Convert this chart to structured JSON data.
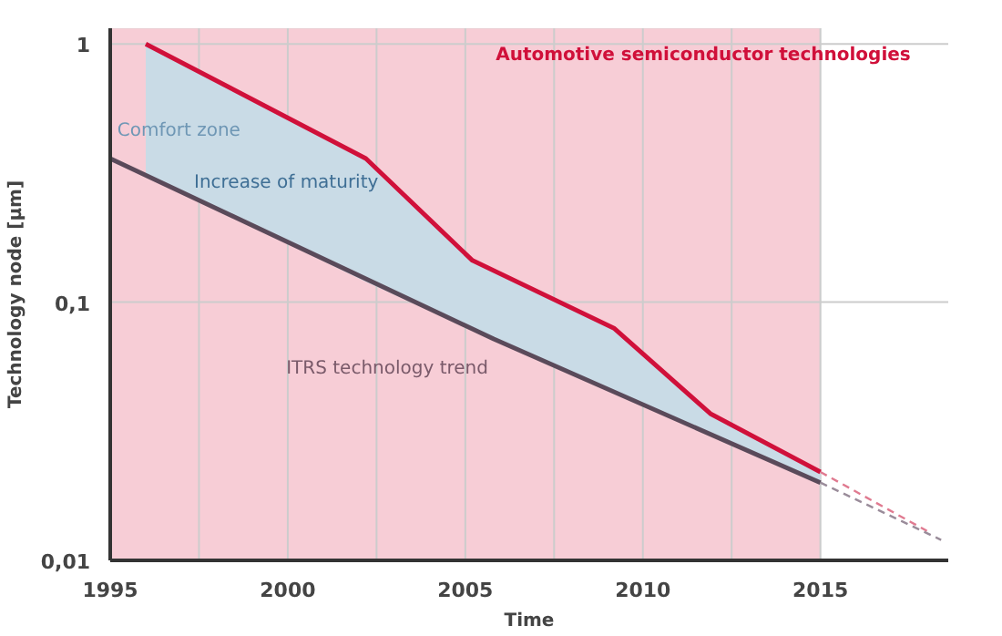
{
  "chart_data": {
    "type": "line",
    "xlabel": "Time",
    "ylabel": "Technology node [µm]",
    "log": "y",
    "xlim": [
      1995,
      2018.6
    ],
    "ylim": [
      0.01,
      1.15
    ],
    "xticks": [
      1995,
      {
        "value": 1997.5,
        "label": null
      },
      2000,
      {
        "value": 2002.5,
        "label": null
      },
      2005,
      {
        "value": 2007.5,
        "label": null
      },
      2010,
      {
        "value": 2012.5,
        "label": null
      },
      2015
    ],
    "yticks": [
      {
        "value": 0.01,
        "label": "0,01"
      },
      {
        "value": 0.1,
        "label": "0,1"
      },
      1
    ],
    "grid": true,
    "line_style": "solid",
    "bands": [
      {
        "axis": "x",
        "from": 1995,
        "to": 2015,
        "color": "#f7cdd6"
      }
    ],
    "series": [
      {
        "color": "#d0103a",
        "x": [
          1996,
          2002.2,
          2005.2,
          2009.2,
          2011.9,
          2015
        ],
        "values": [
          1.0,
          0.36,
          0.145,
          0.079,
          0.037,
          0.022
        ],
        "lower": [
          0.31,
          0.12,
          0.078,
          0.045,
          0.031,
          0.02
        ],
        "upper": [
          1.0,
          0.36,
          0.145,
          0.079,
          0.037,
          0.022
        ]
      },
      {
        "color": "#5a4a5a",
        "x": [
          1995,
          2005.8,
          2015
        ],
        "values": [
          0.36,
          0.072,
          0.02
        ]
      },
      {
        "color": "#e07a90",
        "x": [
          2015,
          2018
        ],
        "values": [
          0.022,
          0.013
        ],
        "line_style": "dashed"
      },
      {
        "color": "#9a8c9a",
        "x": [
          2015,
          2018.4
        ],
        "values": [
          0.02,
          0.012
        ],
        "line_style": "dashed"
      }
    ],
    "annotations": [
      "Automotive semiconductor technologies",
      {
        "text": "Comfort zone",
        "x": 1995.2,
        "y": 0.42
      },
      "Increase of maturity",
      "ITRS technology trend"
    ]
  }
}
